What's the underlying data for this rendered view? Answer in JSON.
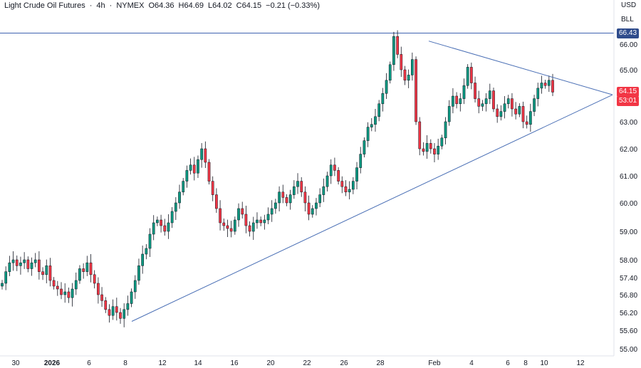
{
  "header": {
    "symbol": "Light Crude Oil Futures",
    "interval": "4h",
    "exchange": "NYMEX",
    "open": "O64.36",
    "high": "H64.69",
    "low": "L64.02",
    "close": "C64.15",
    "change": "−0.21 (−0.33%)",
    "separator": "·"
  },
  "axis": {
    "currency": "USD",
    "unit": "BLL",
    "level_tag": "66.43",
    "last_price_tag": "64.15",
    "countdown_tag": "53:01"
  },
  "colors": {
    "up": "#089981",
    "down": "#f23645",
    "trendline": "#4a6fb5",
    "level_line": "#3e63b0",
    "level_tag_bg": "#2f4c8c",
    "price_tag_bg": "#f23645"
  },
  "chart_data": {
    "type": "candlestick",
    "y_ticks": [
      "66.00",
      "65.00",
      "64.00",
      "63.00",
      "62.00",
      "61.00",
      "60.00",
      "59.00",
      "58.00",
      "57.40",
      "56.80",
      "56.20",
      "55.60",
      "55.00"
    ],
    "x_ticks": [
      "30",
      "2026",
      "6",
      "8",
      "12",
      "14",
      "16",
      "20",
      "22",
      "26",
      "28",
      "Feb",
      "4",
      "6",
      "8",
      "10",
      "12"
    ],
    "level": 66.43,
    "last_price": 64.15,
    "trendline_upper": {
      "from": [
        "Jan 29",
        66.12
      ],
      "to": [
        "Feb 12",
        64.05
      ]
    },
    "trendline_lower": {
      "from": [
        "Jan 8",
        55.9
      ],
      "to": [
        "Feb 12",
        64.05
      ]
    },
    "candles_close": [
      57.2,
      57.6,
      57.9,
      58.0,
      57.8,
      57.9,
      58.0,
      57.7,
      57.9,
      58.0,
      57.6,
      57.5,
      57.8,
      57.3,
      57.1,
      57.0,
      56.8,
      56.9,
      56.7,
      57.0,
      57.3,
      57.7,
      57.6,
      57.9,
      57.5,
      57.2,
      56.8,
      56.6,
      56.3,
      56.1,
      56.4,
      56.2,
      56.0,
      56.3,
      56.5,
      56.9,
      57.3,
      57.8,
      58.2,
      58.4,
      58.9,
      59.3,
      59.4,
      59.2,
      59.0,
      59.3,
      59.7,
      60.0,
      60.4,
      60.8,
      61.2,
      61.4,
      61.1,
      61.6,
      62.0,
      61.5,
      60.8,
      60.3,
      59.8,
      59.3,
      59.2,
      59.1,
      59.0,
      59.4,
      59.8,
      59.6,
      59.2,
      59.0,
      59.3,
      59.4,
      59.3,
      59.4,
      59.6,
      59.8,
      60.0,
      60.4,
      60.2,
      60.0,
      60.3,
      60.6,
      60.8,
      60.4,
      60.0,
      59.6,
      59.8,
      60.0,
      60.3,
      60.6,
      61.0,
      61.4,
      61.2,
      60.8,
      60.6,
      60.4,
      60.5,
      60.8,
      61.3,
      61.8,
      62.3,
      62.8,
      62.9,
      63.2,
      63.7,
      64.1,
      64.6,
      65.2,
      66.3,
      65.6,
      65.0,
      64.6,
      64.8,
      65.4,
      63.0,
      62.0,
      61.9,
      62.2,
      62.0,
      61.8,
      62.1,
      62.4,
      63.0,
      63.6,
      64.0,
      63.7,
      63.9,
      64.4,
      65.1,
      64.5,
      63.9,
      63.6,
      63.7,
      63.9,
      64.2,
      63.5,
      63.2,
      63.4,
      63.7,
      63.9,
      63.5,
      63.3,
      63.6,
      63.0,
      62.9,
      63.4,
      63.9,
      64.3,
      64.5,
      64.4,
      64.6,
      64.15
    ]
  }
}
